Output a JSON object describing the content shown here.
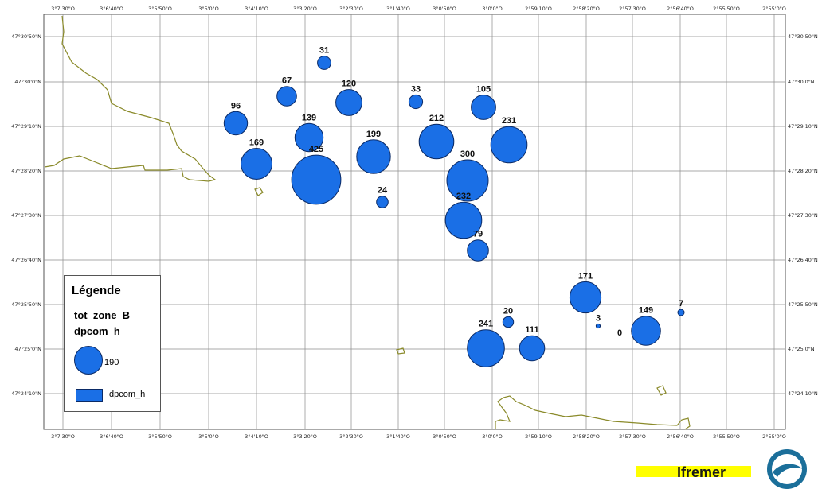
{
  "map": {
    "lon_ticks": [
      "3°7'30\"O",
      "3°6'40\"O",
      "3°5'50\"O",
      "3°5'0\"O",
      "3°4'10\"O",
      "3°3'20\"O",
      "3°2'30\"O",
      "3°1'40\"O",
      "3°0'50\"O",
      "3°0'0\"O",
      "2°59'10\"O",
      "2°58'20\"O",
      "2°57'30\"O",
      "2°56'40\"O",
      "2°55'50\"O",
      "2°55'0\"O"
    ],
    "lat_ticks": [
      "47°30'50\"N",
      "47°30'0\"N",
      "47°29'10\"N",
      "47°28'20\"N",
      "47°27'30\"N",
      "47°26'40\"N",
      "47°25'50\"N",
      "47°25'0\"N",
      "47°24'10\"N"
    ],
    "colors": {
      "bubble": "#1a6fe6",
      "bubble_stroke": "#0a2a66",
      "coast": "#8a8a2a",
      "grid": "#8c8c8c"
    }
  },
  "points": [
    {
      "label": "31",
      "value": 31
    },
    {
      "label": "67",
      "value": 67
    },
    {
      "label": "120",
      "value": 120
    },
    {
      "label": "33",
      "value": 33
    },
    {
      "label": "105",
      "value": 105
    },
    {
      "label": "96",
      "value": 96
    },
    {
      "label": "139",
      "value": 139
    },
    {
      "label": "212",
      "value": 212
    },
    {
      "label": "231",
      "value": 231
    },
    {
      "label": "169",
      "value": 169
    },
    {
      "label": "199",
      "value": 199
    },
    {
      "label": "425",
      "value": 425
    },
    {
      "label": "300",
      "value": 300
    },
    {
      "label": "24",
      "value": 24
    },
    {
      "label": "232",
      "value": 232
    },
    {
      "label": "79",
      "value": 79
    },
    {
      "label": "171",
      "value": 171
    },
    {
      "label": "7",
      "value": 7
    },
    {
      "label": "20",
      "value": 20
    },
    {
      "label": "3",
      "value": 3
    },
    {
      "label": "149",
      "value": 149
    },
    {
      "label": "0",
      "value": 0
    },
    {
      "label": "241",
      "value": 241
    },
    {
      "label": "111",
      "value": 111
    }
  ],
  "legend": {
    "title": "Légende",
    "layer": "tot_zone_B",
    "field": "dpcom_h",
    "symbol_value": "190",
    "swatch_label": "dpcom_h"
  },
  "logo": {
    "text": "Ifremer"
  }
}
